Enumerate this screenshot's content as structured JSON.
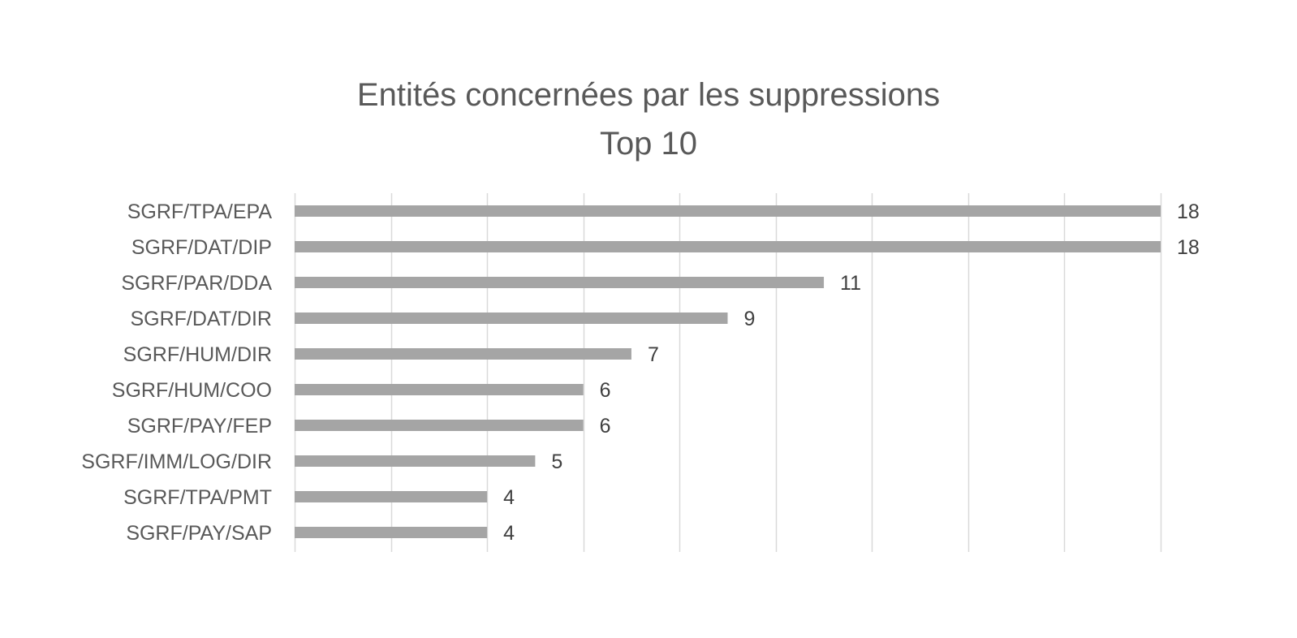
{
  "chart_data": {
    "type": "bar",
    "orientation": "horizontal",
    "title": "Entités concernées par les suppressions",
    "subtitle": "Top 10",
    "categories": [
      "SGRF/TPA/EPA",
      "SGRF/DAT/DIP",
      "SGRF/PAR/DDA",
      "SGRF/DAT/DIR",
      "SGRF/HUM/DIR",
      "SGRF/HUM/COO",
      "SGRF/PAY/FEP",
      "SGRF/IMM/LOG/DIR",
      "SGRF/TPA/PMT",
      "SGRF/PAY/SAP"
    ],
    "values": [
      18,
      18,
      11,
      9,
      7,
      6,
      6,
      5,
      4,
      4
    ],
    "xlim": [
      0,
      18
    ],
    "grid_step": 2,
    "grid": true,
    "data_labels": true,
    "legend": "none",
    "colors": {
      "bar": "#a5a5a5",
      "grid": "#d9d9d9",
      "title": "#595959",
      "labels": "#595959"
    }
  }
}
